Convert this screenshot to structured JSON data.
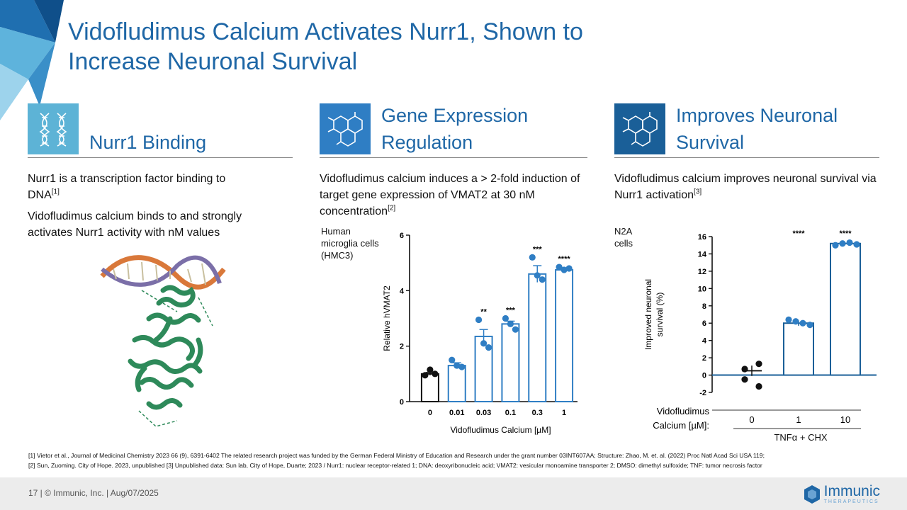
{
  "slide": {
    "title_line1": "Vidofludimus Calcium Activates Nurr1, Shown to",
    "title_line2": "Increase Neuronal Survival"
  },
  "columns": [
    {
      "icon": "dna-icon",
      "heading": "Nurr1 Binding",
      "paragraphs": [
        {
          "text": "Nurr1 is a transcription factor binding to DNA",
          "ref": "[1]"
        },
        {
          "text": "Vidofludimus calcium binds to and strongly activates Nurr1 activity with nM values",
          "ref": ""
        }
      ]
    },
    {
      "icon": "molecule-icon",
      "heading_line1": "Gene Expression",
      "heading_line2": "Regulation",
      "paragraphs": [
        {
          "text": "Vidofludimus calcium induces a > 2-fold induction of target gene expression of VMAT2 at 30 nM concentration",
          "ref": "[2]"
        }
      ]
    },
    {
      "icon": "molecule-icon",
      "heading_line1": "Improves Neuronal",
      "heading_line2": "Survival",
      "paragraphs": [
        {
          "text": "Vidofludimus calcium improves neuronal survival via Nurr1 activation",
          "ref": "[3]"
        }
      ]
    }
  ],
  "colors": {
    "brand_blue": "#1f67a6",
    "icon_light": "#5db3d6",
    "icon_mid": "#2f7ec4",
    "icon_dark": "#1a5f98",
    "point_blue": "#2f7ec4",
    "dna_orange": "#d9783a",
    "dna_purple": "#7b6fa8",
    "protein_green": "#2e8a5a"
  },
  "chart_data": [
    {
      "type": "bar",
      "cell_label_lines": [
        "Human",
        "microglia cells",
        "(HMC3)"
      ],
      "ylabel": "Relative hVMAT2",
      "xlabel": "Vidofludimus Calcium [µM]",
      "ylim": [
        0,
        6
      ],
      "yticks": [
        "0",
        "2",
        "4",
        "6"
      ],
      "categories": [
        "0",
        "0.01",
        "0.03",
        "0.1",
        "0.3",
        "1"
      ],
      "values": [
        1.0,
        1.3,
        2.35,
        2.8,
        4.6,
        4.75
      ],
      "errors": [
        0.05,
        0.1,
        0.25,
        0.1,
        0.3,
        0.05
      ],
      "points": [
        [
          0.95,
          1.15,
          1.0
        ],
        [
          1.5,
          1.3,
          1.25
        ],
        [
          2.95,
          2.1,
          1.95
        ],
        [
          3.0,
          2.8,
          2.6
        ],
        [
          5.2,
          4.55,
          4.4
        ],
        [
          4.85,
          4.75,
          4.8
        ]
      ],
      "significance": [
        "",
        "",
        "**",
        "***",
        "***",
        "****"
      ]
    },
    {
      "type": "bar",
      "cell_label_lines": [
        "N2A",
        "cells"
      ],
      "ylabel_lines": [
        "Improved neuronal",
        "survival (%)"
      ],
      "ylim": [
        -2,
        16
      ],
      "yticks": [
        "-2",
        "0",
        "2",
        "4",
        "6",
        "8",
        "10",
        "12",
        "14",
        "16"
      ],
      "x_title_lines": [
        "Vidofludimus",
        "Calcium [µM]:"
      ],
      "categories": [
        "0",
        "1",
        "10"
      ],
      "values": [
        0.5,
        6.0,
        15.2
      ],
      "errors": [
        0.6,
        0.3,
        0.1
      ],
      "points": [
        [
          0.7,
          1.3,
          -0.5,
          -1.3
        ],
        [
          6.4,
          6.2,
          6.0,
          5.8
        ],
        [
          15.0,
          15.2,
          15.3,
          15.1
        ]
      ],
      "significance": [
        "",
        "****",
        "****"
      ],
      "group_label": "TNFα + CHX"
    }
  ],
  "references": {
    "line1": "[1] Vietor et al., Journal of Medicinal Chemistry 2023 66 (9), 6391-6402 The related research project was funded by the German Federal Ministry of Education and Research under the grant number 03INT607AA; Structure: Zhao, M. et. al. (2022) Proc Natl Acad Sci USA 119;",
    "line2": "[2] Sun, Zuoming. City of Hope. 2023, unpublished [3] Unpublished data: Sun lab, City of Hope, Duarte; 2023 / Nurr1: nuclear receptor-related 1; DNA: deoxyribonucleic acid; VMAT2: vesicular monoamine transporter 2; DMSO: dimethyl sulfoxide; TNF: tumor necrosis factor"
  },
  "footer": {
    "text": "17  |  © Immunic, Inc.  | Aug/07/2025",
    "logo_name": "Immunic",
    "logo_sub": "THERAPEUTICS"
  }
}
